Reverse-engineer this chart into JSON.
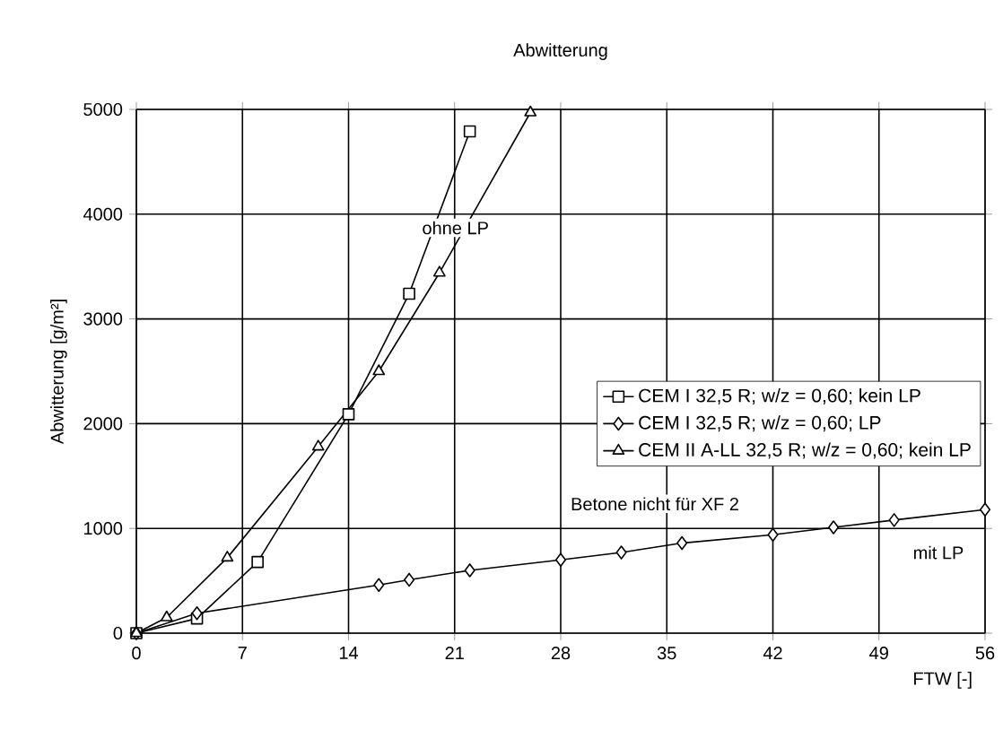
{
  "chart_data": {
    "type": "line",
    "title": "Abwitterung",
    "xlabel": "FTW [-]",
    "ylabel": "Abwitterung [g/m²]",
    "xlim": [
      0,
      56
    ],
    "ylim": [
      0,
      5000
    ],
    "xticks": [
      0,
      7,
      14,
      21,
      28,
      35,
      42,
      49,
      56
    ],
    "yticks": [
      0,
      1000,
      2000,
      3000,
      4000,
      5000
    ],
    "grid": true,
    "legend": "right",
    "line_style": "solid",
    "annotations": [
      "ohne LP",
      "Betone nicht für XF 2",
      "mit LP"
    ],
    "series": [
      {
        "name": "CEM I 32,5 R; w/z = 0,60; kein LP",
        "color": "#000000",
        "marker": "square",
        "x": [
          0,
          4,
          8,
          14,
          18,
          22
        ],
        "values": [
          0,
          140,
          680,
          2090,
          3240,
          4790
        ]
      },
      {
        "name": "CEM I 32,5 R; w/z = 0,60; LP",
        "color": "#000000",
        "marker": "diamond",
        "x": [
          0,
          4,
          16,
          18,
          22,
          28,
          32,
          36,
          42,
          46,
          50,
          56
        ],
        "values": [
          0,
          190,
          460,
          510,
          600,
          700,
          770,
          860,
          940,
          1010,
          1080,
          1180
        ]
      },
      {
        "name": "CEM II A-LL 32,5 R; w/z = 0,60; kein LP",
        "color": "#000000",
        "marker": "triangle",
        "x": [
          0,
          2,
          6,
          12,
          16,
          20,
          26
        ],
        "values": [
          0,
          150,
          720,
          1780,
          2500,
          3440,
          4970
        ]
      }
    ]
  }
}
